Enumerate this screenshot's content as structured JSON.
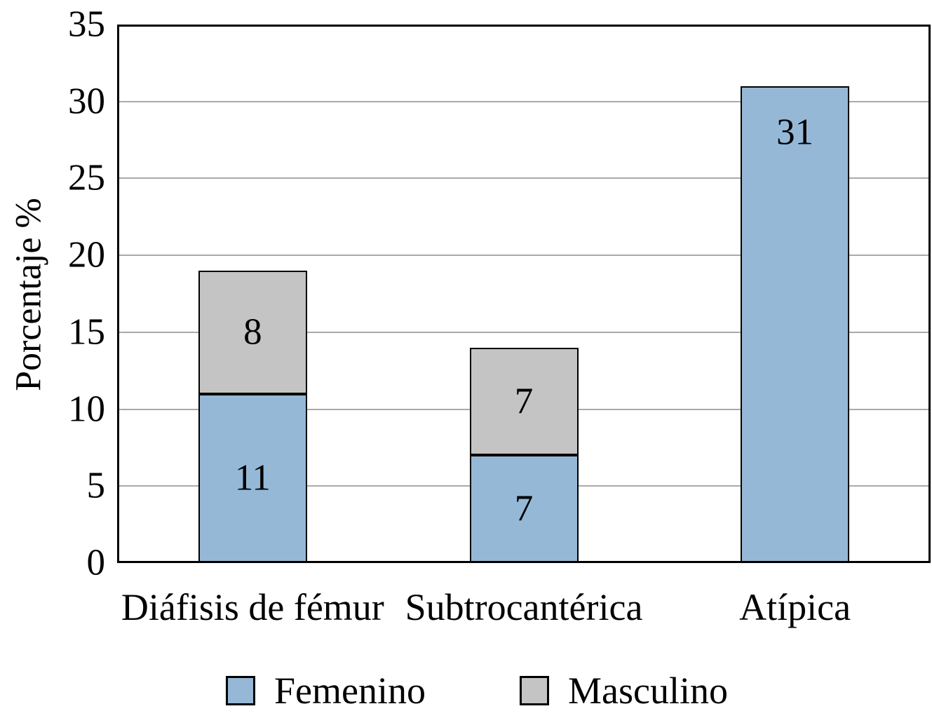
{
  "chart_data": {
    "type": "bar",
    "stacked": true,
    "title": "",
    "categories": [
      "Diáfisis de fémur",
      "Subtrocantérica",
      "Atípica"
    ],
    "series": [
      {
        "name": "Femenino",
        "color": "#95B8D7",
        "values": [
          11,
          7,
          31
        ]
      },
      {
        "name": "Masculino",
        "color": "#C4C4C4",
        "values": [
          8,
          7,
          0
        ]
      }
    ],
    "xlabel": "",
    "ylabel": "Porcentaje %",
    "ylim": [
      0,
      35
    ],
    "yticks": [
      0,
      5,
      10,
      15,
      20,
      25,
      30,
      35
    ],
    "grid": true,
    "legend_position": "bottom",
    "colors": {
      "grid": "#A9A9A9",
      "frame": "#000000",
      "background": "#FFFFFF",
      "text": "#000000"
    }
  }
}
